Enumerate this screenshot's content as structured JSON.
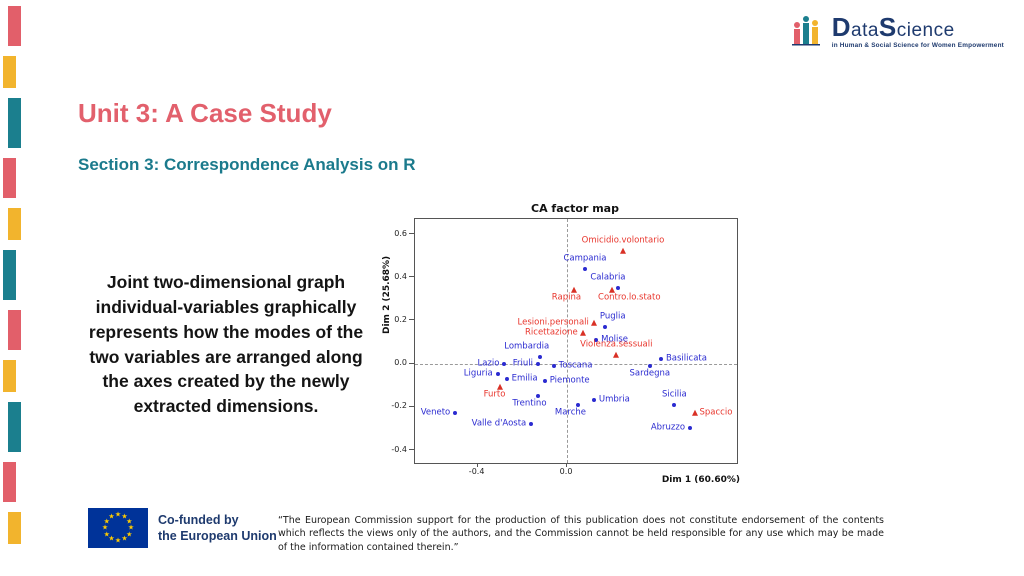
{
  "slide": {
    "title": "Unit 3: A Case Study",
    "section": "Section 3: Correspondence Analysis on R",
    "body_text": "Joint two-dimensional graph individual-variables graphically represents how the modes of the two variables are arranged along the axes created by the newly extracted dimensions."
  },
  "logo": {
    "brand_d": "D",
    "brand_ata": "ata",
    "brand_s": "S",
    "brand_cience": "cience",
    "tagline": "in Human & Social Science for Women Empowerment"
  },
  "footer": {
    "eu_line1": "Co-funded by",
    "eu_line2": "the European Union",
    "disclaimer": "“The European Commission support for the production of this publication does not constitute endorsement of the contents which reflects the views only of the authors, and the Commission cannot be held responsible for any use which may be made of the information contained therein.”"
  },
  "colors": {
    "accent_red": "#e25f6a",
    "accent_yellow": "#f2b42d",
    "accent_teal": "#1b7f8e",
    "navy": "#1e3a6e",
    "title_pink": "#e2606c",
    "section_teal": "#1b7a8c",
    "eu_blue": "#003399",
    "eu_star_yellow": "#ffcc00",
    "region_blue": "#2b2bd0",
    "crime_red": "#e8362d"
  },
  "decor": {
    "blocks": [
      {
        "c": "#e25f6a",
        "h": 40,
        "x": 8
      },
      {
        "c": "#f2b42d",
        "h": 32,
        "x": 3
      },
      {
        "c": "#1b7f8e",
        "h": 50,
        "x": 8
      },
      {
        "c": "#e25f6a",
        "h": 40,
        "x": 3
      },
      {
        "c": "#f2b42d",
        "h": 32,
        "x": 8
      },
      {
        "c": "#1b7f8e",
        "h": 50,
        "x": 3
      },
      {
        "c": "#e25f6a",
        "h": 40,
        "x": 8
      },
      {
        "c": "#f2b42d",
        "h": 32,
        "x": 3
      },
      {
        "c": "#1b7f8e",
        "h": 50,
        "x": 8
      },
      {
        "c": "#e25f6a",
        "h": 40,
        "x": 3
      },
      {
        "c": "#f2b42d",
        "h": 32,
        "x": 8
      }
    ]
  },
  "chart_data": {
    "type": "scatter",
    "title": "CA factor map",
    "xlabel": "Dim 1 (60.60%)",
    "ylabel": "Dim 2 (25.68%)",
    "xlim": [
      -0.68,
      0.76
    ],
    "ylim": [
      -0.46,
      0.67
    ],
    "x_ticks": [
      -0.4,
      0
    ],
    "y_ticks": [
      -0.4,
      -0.2,
      0,
      0.2,
      0.4,
      0.6
    ],
    "grid": "dashed zero lines only",
    "series": [
      {
        "name": "regions",
        "marker": "circle",
        "color": "#2b2bd0",
        "label_color": "#2b2bd0",
        "points": [
          {
            "label": "Campania",
            "x": 0.08,
            "y": 0.44,
            "lpos": "above"
          },
          {
            "label": "Calabria",
            "x": 0.23,
            "y": 0.35,
            "lpos": "above-left"
          },
          {
            "label": "Puglia",
            "x": 0.17,
            "y": 0.17,
            "lpos": "above-right"
          },
          {
            "label": "Molise",
            "x": 0.13,
            "y": 0.11,
            "lpos": "right"
          },
          {
            "label": "Basilicata",
            "x": 0.42,
            "y": 0.02,
            "lpos": "right"
          },
          {
            "label": "Sardegna",
            "x": 0.37,
            "y": -0.01,
            "lpos": "below"
          },
          {
            "label": "Lombardia",
            "x": -0.12,
            "y": 0.03,
            "lpos": "above-left"
          },
          {
            "label": "Lazio",
            "x": -0.28,
            "y": 0,
            "lpos": "left"
          },
          {
            "label": "Friuli",
            "x": -0.13,
            "y": 0,
            "lpos": "left"
          },
          {
            "label": "Toscana",
            "x": -0.06,
            "y": -0.01,
            "lpos": "right"
          },
          {
            "label": "Liguria",
            "x": -0.31,
            "y": -0.05,
            "lpos": "left"
          },
          {
            "label": "Emilia",
            "x": -0.27,
            "y": -0.07,
            "lpos": "right"
          },
          {
            "label": "Piemonte",
            "x": -0.1,
            "y": -0.08,
            "lpos": "right"
          },
          {
            "label": "Trentino",
            "x": -0.13,
            "y": -0.15,
            "lpos": "below-left"
          },
          {
            "label": "Umbria",
            "x": 0.12,
            "y": -0.17,
            "lpos": "right"
          },
          {
            "label": "Sicilia",
            "x": 0.48,
            "y": -0.19,
            "lpos": "above"
          },
          {
            "label": "Marche",
            "x": 0.05,
            "y": -0.19,
            "lpos": "below-left"
          },
          {
            "label": "Veneto",
            "x": -0.5,
            "y": -0.23,
            "lpos": "left"
          },
          {
            "label": "Valle d'Aosta",
            "x": -0.16,
            "y": -0.28,
            "lpos": "left"
          },
          {
            "label": "Abruzzo",
            "x": 0.55,
            "y": -0.3,
            "lpos": "left"
          }
        ]
      },
      {
        "name": "crimes",
        "marker": "triangle",
        "color": "#d93025",
        "label_color": "#e8362d",
        "points": [
          {
            "label": "Omicidio.volontario",
            "x": 0.25,
            "y": 0.52,
            "lpos": "above"
          },
          {
            "label": "Rapina",
            "x": 0.03,
            "y": 0.34,
            "lpos": "below-left"
          },
          {
            "label": "Contro.lo.stato",
            "x": 0.2,
            "y": 0.34,
            "lpos": "below-right"
          },
          {
            "label": "Lesioni.personali",
            "x": 0.12,
            "y": 0.19,
            "lpos": "left"
          },
          {
            "label": "Ricettazione",
            "x": 0.07,
            "y": 0.14,
            "lpos": "left"
          },
          {
            "label": "Violenza.sessuali",
            "x": 0.22,
            "y": 0.04,
            "lpos": "above"
          },
          {
            "label": "Furto",
            "x": -0.3,
            "y": -0.11,
            "lpos": "below-left"
          },
          {
            "label": "Spaccio",
            "x": 0.57,
            "y": -0.23,
            "lpos": "right"
          }
        ]
      }
    ]
  }
}
